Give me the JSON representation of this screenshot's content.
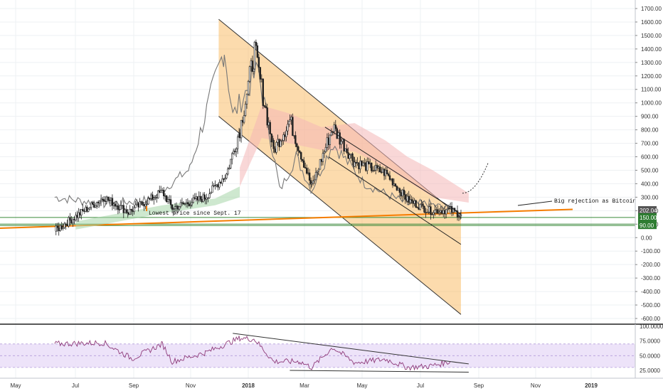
{
  "chart_data": [
    {
      "type": "candlestick",
      "panel": "price",
      "x_labels": [
        "May",
        "Jul",
        "Sep",
        "Nov",
        "2018",
        "Mar",
        "May",
        "Jul",
        "Sep",
        "Nov",
        "2019"
      ],
      "y_ticks": [
        -600,
        -500,
        -400,
        -300,
        -200,
        -100,
        0,
        100,
        200,
        300,
        400,
        500,
        600,
        700,
        800,
        900,
        1000,
        1100,
        1200,
        1300,
        1400,
        1500,
        1600,
        1700
      ],
      "ylim": [
        -650,
        1750
      ],
      "price_badges": [
        {
          "label": "202.04",
          "value": 202.04,
          "color": "#555555"
        },
        {
          "label": "150.00",
          "value": 150,
          "color": "#2e7d32"
        },
        {
          "label": "100.00",
          "value": 100,
          "color": "#2e7d32"
        },
        {
          "label": "90.00",
          "value": 90,
          "color": "#2e7d32"
        }
      ],
      "horizontal_levels": [
        {
          "value": 150,
          "color": "#3a8a3a"
        },
        {
          "value": 100,
          "color": "#3a8a3a"
        },
        {
          "value": 90,
          "color": "#3a8a3a"
        }
      ],
      "annotations": [
        {
          "text": "Lowest price since Sept. 17"
        },
        {
          "text": "Big rejection as Bitcoin"
        }
      ],
      "descending_channel": {
        "upper": [
          [
            "2017-11-20",
            1620
          ],
          [
            "2018-10-30",
            150
          ]
        ],
        "lower": [
          [
            "2017-11-20",
            900
          ],
          [
            "2018-10-30",
            -570
          ]
        ],
        "fill": "#f9b04a"
      },
      "price_series_keypoints": [
        [
          "2017-04-01",
          50
        ],
        [
          "2017-06-10",
          300
        ],
        [
          "2017-07-15",
          190
        ],
        [
          "2017-09-01",
          340
        ],
        [
          "2017-09-15",
          220
        ],
        [
          "2017-11-01",
          300
        ],
        [
          "2017-12-01",
          470
        ],
        [
          "2017-12-20",
          800
        ],
        [
          "2018-01-10",
          1380
        ],
        [
          "2018-02-06",
          650
        ],
        [
          "2018-03-01",
          870
        ],
        [
          "2018-04-01",
          380
        ],
        [
          "2018-05-01",
          820
        ],
        [
          "2018-06-01",
          560
        ],
        [
          "2018-07-15",
          480
        ],
        [
          "2018-08-15",
          280
        ],
        [
          "2018-09-15",
          200
        ],
        [
          "2018-10-15",
          205
        ],
        [
          "2018-10-30",
          170
        ]
      ],
      "comparison_series_keypoints": [
        [
          "2017-04-01",
          300
        ],
        [
          "2017-06-10",
          250
        ],
        [
          "2017-08-15",
          280
        ],
        [
          "2017-10-10",
          510
        ],
        [
          "2017-11-28",
          1400
        ],
        [
          "2017-12-10",
          900
        ],
        [
          "2018-01-15",
          1250
        ],
        [
          "2018-02-15",
          350
        ],
        [
          "2018-03-10",
          600
        ],
        [
          "2018-04-01",
          350
        ],
        [
          "2018-05-01",
          700
        ],
        [
          "2018-06-15",
          400
        ],
        [
          "2018-08-15",
          250
        ],
        [
          "2018-09-15",
          250
        ],
        [
          "2018-10-20",
          200
        ]
      ]
    },
    {
      "type": "line",
      "panel": "rsi",
      "y_ticks": [
        25,
        50,
        75,
        100
      ],
      "y_tick_labels": [
        "25.0000",
        "50.0000",
        "75.0000",
        "100.0000"
      ],
      "ylim": [
        15,
        100
      ],
      "band": [
        30,
        70
      ],
      "series_keypoints": [
        [
          "2017-04-01",
          70
        ],
        [
          "2017-06-10",
          72
        ],
        [
          "2017-07-20",
          45
        ],
        [
          "2017-09-01",
          70
        ],
        [
          "2017-09-15",
          40
        ],
        [
          "2017-11-01",
          55
        ],
        [
          "2017-12-20",
          80
        ],
        [
          "2018-01-10",
          78
        ],
        [
          "2018-02-06",
          40
        ],
        [
          "2018-03-15",
          40
        ],
        [
          "2018-04-01",
          30
        ],
        [
          "2018-05-01",
          64
        ],
        [
          "2018-06-01",
          38
        ],
        [
          "2018-07-15",
          44
        ],
        [
          "2018-08-15",
          30
        ],
        [
          "2018-09-15",
          32
        ],
        [
          "2018-10-15",
          40
        ]
      ]
    }
  ]
}
